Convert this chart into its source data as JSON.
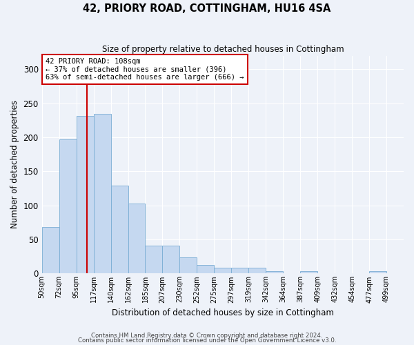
{
  "title": "42, PRIORY ROAD, COTTINGHAM, HU16 4SA",
  "subtitle": "Size of property relative to detached houses in Cottingham",
  "xlabel": "Distribution of detached houses by size in Cottingham",
  "ylabel": "Number of detached properties",
  "bar_color": "#c5d8f0",
  "bar_edge_color": "#7aadd4",
  "background_color": "#eef2f9",
  "grid_color": "#ffffff",
  "annotation_text": "42 PRIORY ROAD: 108sqm\n← 37% of detached houses are smaller (396)\n63% of semi-detached houses are larger (666) →",
  "annotation_box_color": "#ffffff",
  "annotation_box_edge": "#cc0000",
  "vline_color": "#cc0000",
  "categories": [
    "50sqm",
    "72sqm",
    "95sqm",
    "117sqm",
    "140sqm",
    "162sqm",
    "185sqm",
    "207sqm",
    "230sqm",
    "252sqm",
    "275sqm",
    "297sqm",
    "319sqm",
    "342sqm",
    "364sqm",
    "387sqm",
    "409sqm",
    "432sqm",
    "454sqm",
    "477sqm",
    "499sqm"
  ],
  "values": [
    68,
    197,
    231,
    234,
    129,
    103,
    41,
    41,
    24,
    13,
    8,
    8,
    9,
    3,
    0,
    3,
    0,
    0,
    0,
    3,
    0
  ],
  "n_bars": 21,
  "vline_bar_index": 2.6,
  "ylim": [
    0,
    320
  ],
  "yticks": [
    0,
    50,
    100,
    150,
    200,
    250,
    300
  ],
  "footnote1": "Contains HM Land Registry data © Crown copyright and database right 2024.",
  "footnote2": "Contains public sector information licensed under the Open Government Licence v3.0."
}
